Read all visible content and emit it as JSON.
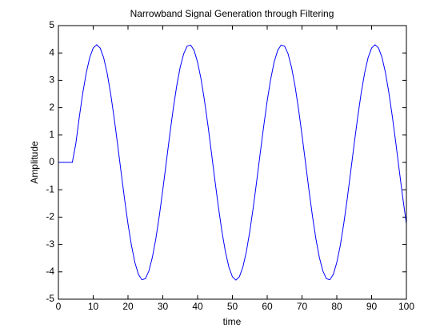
{
  "chart_data": {
    "type": "line",
    "title": "Narrowband Signal Generation through Filtering",
    "xlabel": "time",
    "ylabel": "Amplitude",
    "x": [
      0,
      1,
      2,
      3,
      4,
      5,
      6,
      7,
      8,
      9,
      10,
      11,
      12,
      13,
      14,
      15,
      16,
      17,
      18,
      19,
      20,
      21,
      22,
      23,
      24,
      25,
      26,
      27,
      28,
      29,
      30,
      31,
      32,
      33,
      34,
      35,
      36,
      37,
      38,
      39,
      40,
      41,
      42,
      43,
      44,
      45,
      46,
      47,
      48,
      49,
      50,
      51,
      52,
      53,
      54,
      55,
      56,
      57,
      58,
      59,
      60,
      61,
      62,
      63,
      64,
      65,
      66,
      67,
      68,
      69,
      70,
      71,
      72,
      73,
      74,
      75,
      76,
      77,
      78,
      79,
      80,
      81,
      82,
      83,
      84,
      85,
      86,
      87,
      88,
      89,
      90,
      91,
      92,
      93,
      94,
      95,
      96,
      97,
      98,
      99,
      100
    ],
    "series": [
      {
        "color": "#0000ff",
        "values": [
          0,
          0,
          0,
          0,
          0,
          0.68,
          1.65,
          2.53,
          3.27,
          3.83,
          4.18,
          4.3,
          4.18,
          3.83,
          3.27,
          2.52,
          1.64,
          0.67,
          -0.34,
          -1.33,
          -2.25,
          -3.04,
          -3.67,
          -4.09,
          -4.29,
          -4.25,
          -3.97,
          -3.47,
          -2.79,
          -1.95,
          -1.0,
          0.0,
          1.01,
          1.96,
          2.8,
          3.48,
          3.97,
          4.25,
          4.29,
          4.09,
          3.66,
          3.04,
          2.24,
          1.33,
          0.33,
          -0.68,
          -1.65,
          -2.53,
          -3.27,
          -3.83,
          -4.18,
          -4.3,
          -4.18,
          -3.83,
          -3.27,
          -2.52,
          -1.64,
          -0.67,
          0.34,
          1.33,
          2.25,
          3.04,
          3.67,
          4.09,
          4.29,
          4.25,
          3.97,
          3.47,
          2.79,
          1.95,
          1.0,
          0.0,
          -1.01,
          -1.96,
          -2.8,
          -3.48,
          -3.97,
          -4.25,
          -4.29,
          -4.09,
          -3.66,
          -3.04,
          -2.24,
          -1.33,
          -0.33,
          0.68,
          1.65,
          2.53,
          3.27,
          3.83,
          4.18,
          4.3,
          4.18,
          3.83,
          3.27,
          2.52,
          1.64,
          0.67,
          -0.34,
          -1.33,
          -2.25
        ]
      }
    ],
    "xlim": [
      0,
      100
    ],
    "xticks": [
      0,
      10,
      20,
      30,
      40,
      50,
      60,
      70,
      80,
      90,
      100
    ],
    "ylim": [
      -5,
      5
    ],
    "yticks": [
      -5,
      -4,
      -3,
      -2,
      -1,
      0,
      1,
      2,
      3,
      4,
      5
    ],
    "grid": false
  }
}
